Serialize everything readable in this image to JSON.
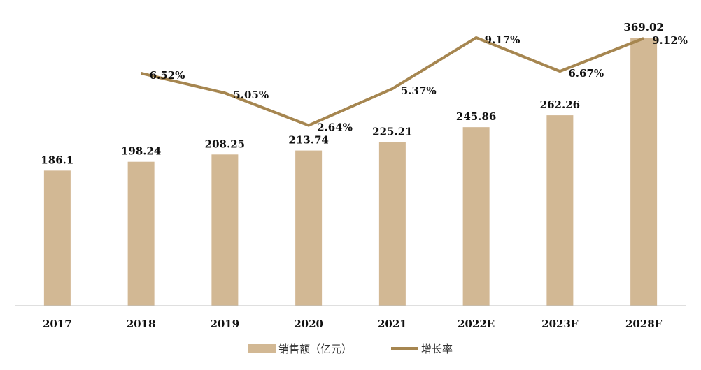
{
  "colors": {
    "bar": "#D2B894",
    "line": "#A68650",
    "axis": "#BFBFBF"
  },
  "chart_data": {
    "type": "bar",
    "categories": [
      "2017",
      "2018",
      "2019",
      "2020",
      "2021",
      "2022E",
      "2023F",
      "2028F"
    ],
    "series": [
      {
        "name": "销售额（亿元）",
        "type": "bar",
        "values": [
          186.1,
          198.24,
          208.25,
          213.74,
          225.21,
          245.86,
          262.26,
          369.02
        ],
        "labels": [
          "186.1",
          "198.24",
          "208.25",
          "213.74",
          "225.21",
          "245.86",
          "262.26",
          "369.02"
        ]
      },
      {
        "name": "增长率",
        "type": "line",
        "values": [
          null,
          6.52,
          5.05,
          2.64,
          5.37,
          9.17,
          6.67,
          9.12
        ],
        "labels": [
          null,
          "6.52%",
          "5.05%",
          "2.64%",
          "5.37%",
          "9.17%",
          "6.67%",
          "9.12%"
        ]
      }
    ],
    "ylim": [
      0,
      369.02
    ],
    "y2lim": [
      -10.8,
      9.17
    ],
    "grid": false,
    "legend": "bottom"
  }
}
